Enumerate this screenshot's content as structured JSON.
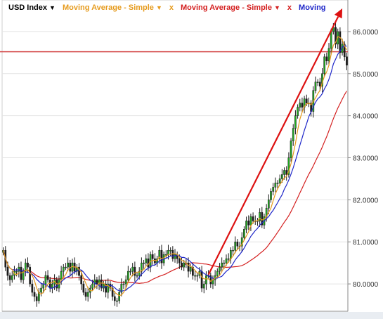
{
  "legend": {
    "instrument": "USD Index",
    "sma1_label": "Moving Average - Simple",
    "sma2_label": "Moving Average - Simple",
    "sma3_label": "Moving",
    "separator": "x",
    "dropdown_glyph": "▼"
  },
  "colors": {
    "background": "#ffffff",
    "grid": "#e4e4e4",
    "axis_text": "#333333",
    "candle": "#1c1c1c",
    "up_accent": "#22aa22",
    "sma_fast": "#e69b1e",
    "sma_mid": "#1f27c9",
    "sma_slow": "#d42020",
    "horizontal_line": "#d44a4a",
    "trend_arrow": "#dd1111",
    "legend_black": "#000000"
  },
  "chart_data": {
    "type": "candlestick",
    "instrument": "USD Index",
    "ylim": [
      79.35,
      86.75
    ],
    "y_ticks": [
      "80.0000",
      "81.0000",
      "82.0000",
      "83.0000",
      "84.0000",
      "85.0000",
      "86.0000"
    ],
    "y_tick_values": [
      80,
      81,
      82,
      83,
      84,
      85,
      86
    ],
    "grid": true,
    "horizontal_line_value": 85.52,
    "arrow": {
      "from_bar": 92,
      "from_value": 80.22,
      "to_bar": 152,
      "to_value": 86.55
    },
    "close_values": [
      80.8,
      80.4,
      80.2,
      80.1,
      80.2,
      80.3,
      80.3,
      80.4,
      80.1,
      80.3,
      80.5,
      80.4,
      80.0,
      79.8,
      79.7,
      79.6,
      79.8,
      79.9,
      80.0,
      80.2,
      80.1,
      79.9,
      80.0,
      80.1,
      79.9,
      80.1,
      80.3,
      80.4,
      80.4,
      80.5,
      80.3,
      80.5,
      80.3,
      80.4,
      80.2,
      80.0,
      79.8,
      79.7,
      79.8,
      79.9,
      80.0,
      80.1,
      80.0,
      80.1,
      79.9,
      80.0,
      79.8,
      80.0,
      79.9,
      79.7,
      79.6,
      79.6,
      79.8,
      80.0,
      80.0,
      80.1,
      80.3,
      80.3,
      80.4,
      80.2,
      80.2,
      80.3,
      80.5,
      80.5,
      80.6,
      80.4,
      80.7,
      80.6,
      80.5,
      80.6,
      80.8,
      80.5,
      80.7,
      80.7,
      80.8,
      80.8,
      80.6,
      80.7,
      80.6,
      80.5,
      80.4,
      80.5,
      80.5,
      80.3,
      80.4,
      80.2,
      80.2,
      80.2,
      80.3,
      79.9,
      80.0,
      80.2,
      80.2,
      80.0,
      80.1,
      80.2,
      80.3,
      80.4,
      80.5,
      80.5,
      80.6,
      80.6,
      80.8,
      80.8,
      81.0,
      80.9,
      80.9,
      81.1,
      81.3,
      81.5,
      81.4,
      81.6,
      81.5,
      81.5,
      81.5,
      81.7,
      81.4,
      81.6,
      81.8,
      82.0,
      82.2,
      82.3,
      82.4,
      82.4,
      82.5,
      82.6,
      82.7,
      82.6,
      83.0,
      83.4,
      83.7,
      84.0,
      84.2,
      84.3,
      84.2,
      84.4,
      84.3,
      84.3,
      84.1,
      84.6,
      84.8,
      84.8,
      84.7,
      85.0,
      85.4,
      85.3,
      85.6,
      86.0,
      86.1,
      85.7,
      86.0,
      85.5,
      85.7,
      85.4,
      85.2
    ],
    "sma_fast_values": [
      80.4,
      80.3,
      80.2,
      80.0,
      79.9,
      79.9,
      80.0,
      80.1,
      80.1,
      80.2,
      80.3,
      80.3,
      80.2,
      80.1,
      79.9,
      79.9,
      79.9,
      80.0,
      80.1,
      80.2,
      80.1,
      80.0,
      79.95,
      80.0,
      80.1,
      80.2,
      80.3,
      80.4,
      80.3,
      80.2,
      80.1,
      80.0,
      79.9,
      79.85,
      79.85,
      79.9,
      80.0,
      80.05,
      80.0,
      79.9,
      79.8,
      79.8,
      79.8,
      79.9,
      80.0,
      80.1,
      80.2,
      80.3,
      80.35,
      80.4,
      80.45,
      80.5,
      80.55,
      80.6,
      80.6,
      80.55,
      80.5,
      80.45,
      80.4,
      80.35,
      80.3,
      80.25,
      80.2,
      80.2,
      80.15,
      80.1,
      80.05,
      80.05,
      80.1,
      80.15,
      80.2,
      80.3,
      80.4,
      80.5,
      80.6,
      80.7,
      80.8,
      80.9,
      81.0,
      81.1,
      81.2,
      81.3,
      81.4,
      81.5,
      81.6,
      81.7,
      81.8,
      82.0,
      82.2,
      82.4,
      82.6,
      82.9,
      83.2,
      83.5,
      83.75,
      83.95,
      84.1,
      84.3,
      84.5,
      84.7,
      84.9,
      85.1,
      85.3,
      85.45,
      85.5,
      85.45,
      85.4
    ]
  }
}
